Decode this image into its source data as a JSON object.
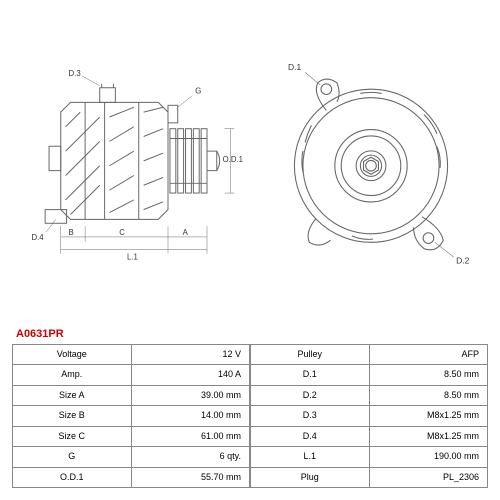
{
  "part_number": "A0631PR",
  "part_number_color": "#cc0000",
  "diagram": {
    "stroke_color": "#666666",
    "stroke_width": 1,
    "label_fontsize": 8,
    "label_color": "#333333",
    "labels_left": {
      "d3": "D.3",
      "g": "G",
      "od1": "O.D.1",
      "d4": "D.4",
      "b": "B",
      "c": "C",
      "a": "A",
      "l1": "L.1"
    },
    "labels_right": {
      "d1": "D.1",
      "d2": "D.2"
    }
  },
  "specs_left": [
    {
      "label": "Voltage",
      "value": "12 V"
    },
    {
      "label": "Amp.",
      "value": "140 A"
    },
    {
      "label": "Size A",
      "value": "39.00 mm"
    },
    {
      "label": "Size B",
      "value": "14.00 mm"
    },
    {
      "label": "Size C",
      "value": "61.00 mm"
    },
    {
      "label": "G",
      "value": "6 qty."
    },
    {
      "label": "O.D.1",
      "value": "55.70 mm"
    }
  ],
  "specs_right": [
    {
      "label": "Pulley",
      "value": "AFP"
    },
    {
      "label": "D.1",
      "value": "8.50 mm"
    },
    {
      "label": "D.2",
      "value": "8.50 mm"
    },
    {
      "label": "D.3",
      "value": "M8x1.25 mm"
    },
    {
      "label": "D.4",
      "value": "M8x1.25 mm"
    },
    {
      "label": "L.1",
      "value": "190.00 mm"
    },
    {
      "label": "Plug",
      "value": "PL_2306"
    }
  ],
  "table_style": {
    "border_color": "#888888",
    "font_size": 9,
    "label_align": "center",
    "value_align": "right"
  }
}
